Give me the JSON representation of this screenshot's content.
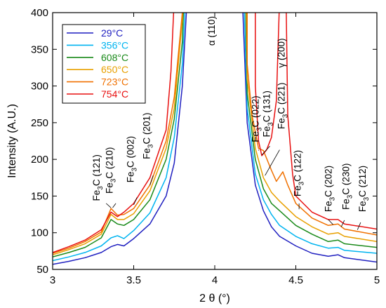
{
  "chart_data": {
    "type": "line",
    "xlabel": "2 θ (°)",
    "ylabel": "Intensity (A.U.)",
    "xlim": [
      3,
      5
    ],
    "ylim": [
      50,
      400
    ],
    "x_ticks": [
      "3",
      "3.5",
      "4",
      "4.5",
      "5"
    ],
    "y_ticks": [
      "50",
      "100",
      "150",
      "200",
      "250",
      "300",
      "350",
      "400"
    ],
    "grid": false,
    "legend_position": "top-left",
    "series": [
      {
        "name": "29°C",
        "color": "#1f1fc0",
        "points": [
          [
            3.0,
            57
          ],
          [
            3.1,
            61
          ],
          [
            3.2,
            66
          ],
          [
            3.3,
            73
          ],
          [
            3.36,
            81
          ],
          [
            3.4,
            84
          ],
          [
            3.44,
            82
          ],
          [
            3.5,
            92
          ],
          [
            3.6,
            112
          ],
          [
            3.7,
            150
          ],
          [
            3.75,
            195
          ],
          [
            3.8,
            300
          ],
          [
            3.83,
            420
          ],
          [
            4.17,
            420
          ],
          [
            4.2,
            250
          ],
          [
            4.25,
            165
          ],
          [
            4.3,
            130
          ],
          [
            4.35,
            108
          ],
          [
            4.4,
            95
          ],
          [
            4.5,
            82
          ],
          [
            4.6,
            72
          ],
          [
            4.7,
            68
          ],
          [
            4.76,
            70
          ],
          [
            4.8,
            66
          ],
          [
            5.0,
            60
          ]
        ]
      },
      {
        "name": "356°C",
        "color": "#00b4f0",
        "points": [
          [
            3.0,
            62
          ],
          [
            3.1,
            67
          ],
          [
            3.2,
            73
          ],
          [
            3.3,
            82
          ],
          [
            3.36,
            93
          ],
          [
            3.4,
            96
          ],
          [
            3.44,
            92
          ],
          [
            3.5,
            103
          ],
          [
            3.6,
            127
          ],
          [
            3.7,
            175
          ],
          [
            3.75,
            230
          ],
          [
            3.8,
            330
          ],
          [
            3.82,
            420
          ],
          [
            4.18,
            420
          ],
          [
            4.2,
            270
          ],
          [
            4.25,
            180
          ],
          [
            4.3,
            145
          ],
          [
            4.35,
            125
          ],
          [
            4.4,
            110
          ],
          [
            4.5,
            95
          ],
          [
            4.6,
            85
          ],
          [
            4.7,
            79
          ],
          [
            4.76,
            80
          ],
          [
            4.8,
            76
          ],
          [
            5.0,
            72
          ]
        ]
      },
      {
        "name": "608°C",
        "color": "#1a8a1a",
        "points": [
          [
            3.0,
            67
          ],
          [
            3.1,
            73
          ],
          [
            3.2,
            80
          ],
          [
            3.3,
            93
          ],
          [
            3.36,
            118
          ],
          [
            3.4,
            112
          ],
          [
            3.44,
            110
          ],
          [
            3.5,
            118
          ],
          [
            3.6,
            145
          ],
          [
            3.7,
            200
          ],
          [
            3.75,
            255
          ],
          [
            3.8,
            360
          ],
          [
            3.81,
            420
          ],
          [
            4.19,
            420
          ],
          [
            4.2,
            290
          ],
          [
            4.25,
            200
          ],
          [
            4.3,
            160
          ],
          [
            4.35,
            140
          ],
          [
            4.4,
            130
          ],
          [
            4.5,
            110
          ],
          [
            4.6,
            98
          ],
          [
            4.7,
            88
          ],
          [
            4.76,
            90
          ],
          [
            4.8,
            85
          ],
          [
            5.0,
            80
          ]
        ]
      },
      {
        "name": "650°C",
        "color": "#e8a000",
        "points": [
          [
            3.0,
            70
          ],
          [
            3.1,
            77
          ],
          [
            3.2,
            85
          ],
          [
            3.3,
            98
          ],
          [
            3.36,
            125
          ],
          [
            3.4,
            118
          ],
          [
            3.44,
            118
          ],
          [
            3.5,
            126
          ],
          [
            3.6,
            157
          ],
          [
            3.7,
            215
          ],
          [
            3.75,
            270
          ],
          [
            3.8,
            390
          ],
          [
            3.805,
            420
          ],
          [
            4.195,
            420
          ],
          [
            4.2,
            310
          ],
          [
            4.25,
            215
          ],
          [
            4.3,
            175
          ],
          [
            4.35,
            155
          ],
          [
            4.4,
            143
          ],
          [
            4.5,
            122
          ],
          [
            4.6,
            108
          ],
          [
            4.7,
            98
          ],
          [
            4.76,
            100
          ],
          [
            4.8,
            95
          ],
          [
            5.0,
            88
          ]
        ]
      },
      {
        "name": "723°C",
        "color": "#f07000",
        "points": [
          [
            3.0,
            72
          ],
          [
            3.1,
            79
          ],
          [
            3.2,
            88
          ],
          [
            3.3,
            101
          ],
          [
            3.36,
            133
          ],
          [
            3.4,
            124
          ],
          [
            3.44,
            125
          ],
          [
            3.5,
            133
          ],
          [
            3.6,
            165
          ],
          [
            3.7,
            225
          ],
          [
            3.75,
            285
          ],
          [
            3.8,
            400
          ],
          [
            3.8,
            420
          ],
          [
            4.2,
            420
          ],
          [
            4.2,
            330
          ],
          [
            4.23,
            260
          ],
          [
            4.27,
            215
          ],
          [
            4.3,
            212
          ],
          [
            4.35,
            185
          ],
          [
            4.38,
            170
          ],
          [
            4.42,
            183
          ],
          [
            4.45,
            165
          ],
          [
            4.5,
            140
          ],
          [
            4.6,
            120
          ],
          [
            4.7,
            110
          ],
          [
            4.76,
            112
          ],
          [
            4.8,
            105
          ],
          [
            5.0,
            97
          ]
        ]
      },
      {
        "name": "754°C",
        "color": "#e81010",
        "points": [
          [
            3.0,
            73
          ],
          [
            3.1,
            81
          ],
          [
            3.2,
            90
          ],
          [
            3.3,
            104
          ],
          [
            3.36,
            128
          ],
          [
            3.4,
            122
          ],
          [
            3.44,
            128
          ],
          [
            3.5,
            140
          ],
          [
            3.6,
            175
          ],
          [
            3.7,
            240
          ],
          [
            3.73,
            320
          ],
          [
            3.75,
            420
          ],
          [
            4.25,
            420
          ],
          [
            4.25,
            300
          ],
          [
            4.27,
            225
          ],
          [
            4.29,
            205
          ],
          [
            4.32,
            213
          ],
          [
            4.35,
            230
          ],
          [
            4.38,
            280
          ],
          [
            4.4,
            420
          ],
          [
            4.44,
            420
          ],
          [
            4.45,
            260
          ],
          [
            4.48,
            180
          ],
          [
            4.5,
            150
          ],
          [
            4.6,
            128
          ],
          [
            4.7,
            118
          ],
          [
            4.76,
            118
          ],
          [
            4.8,
            112
          ],
          [
            5.0,
            105
          ]
        ]
      }
    ],
    "annotations": [
      {
        "text": "α (110)",
        "x": 4.0,
        "y": 375,
        "rotate": true
      },
      {
        "text": "γ (200)",
        "x": 4.43,
        "y": 345,
        "rotate": true
      },
      {
        "text": "Fe",
        "sub": "3",
        "rest": "C (121)",
        "x": 3.29,
        "y": 175,
        "rotate": true
      },
      {
        "text": "Fe",
        "sub": "3",
        "rest": "C (210)",
        "x": 3.37,
        "y": 185,
        "rotate": true
      },
      {
        "text": "Fe",
        "sub": "3",
        "rest": "C (002)",
        "x": 3.5,
        "y": 200,
        "rotate": true
      },
      {
        "text": "Fe",
        "sub": "3",
        "rest": "C (201)",
        "x": 3.6,
        "y": 232,
        "rotate": true
      },
      {
        "text": "Fe",
        "sub": "3",
        "rest": "C (022)",
        "x": 4.27,
        "y": 255,
        "rotate": true
      },
      {
        "text": "Fe",
        "sub": "3",
        "rest": "C (131)",
        "x": 4.34,
        "y": 262,
        "rotate": true
      },
      {
        "text": "Fe",
        "sub": "3",
        "rest": "C (221)",
        "x": 4.43,
        "y": 273,
        "rotate": true
      },
      {
        "text": "Fe",
        "sub": "3",
        "rest": "C (122)",
        "x": 4.53,
        "y": 181,
        "rotate": true
      },
      {
        "text": "Fe",
        "sub": "3",
        "rest": "C (202)",
        "x": 4.72,
        "y": 160,
        "rotate": true
      },
      {
        "text": "Fe",
        "sub": "3",
        "rest": "C (230)",
        "x": 4.83,
        "y": 163,
        "rotate": true
      },
      {
        "text": "Fe",
        "sub": "3",
        "rest": "C (212)",
        "x": 4.93,
        "y": 160,
        "rotate": true
      }
    ],
    "leader_lines": [
      [
        [
          3.33,
          140
        ],
        [
          3.36,
          134
        ]
      ],
      [
        [
          3.39,
          140
        ],
        [
          3.37,
          134
        ]
      ],
      [
        [
          3.52,
          148
        ],
        [
          3.5,
          138
        ]
      ],
      [
        [
          3.62,
          178
        ],
        [
          3.6,
          165
        ]
      ],
      [
        [
          4.27,
          213
        ],
        [
          4.27,
          212
        ]
      ],
      [
        [
          4.34,
          218
        ],
        [
          4.29,
          206
        ]
      ],
      [
        [
          4.4,
          213
        ],
        [
          4.31,
          178
        ]
      ],
      [
        [
          4.52,
          132
        ],
        [
          4.52,
          140
        ]
      ],
      [
        [
          4.7,
          118
        ],
        [
          4.73,
          111
        ]
      ],
      [
        [
          4.8,
          117
        ],
        [
          4.78,
          108
        ]
      ],
      [
        [
          4.9,
          114
        ],
        [
          4.88,
          104
        ]
      ]
    ]
  }
}
